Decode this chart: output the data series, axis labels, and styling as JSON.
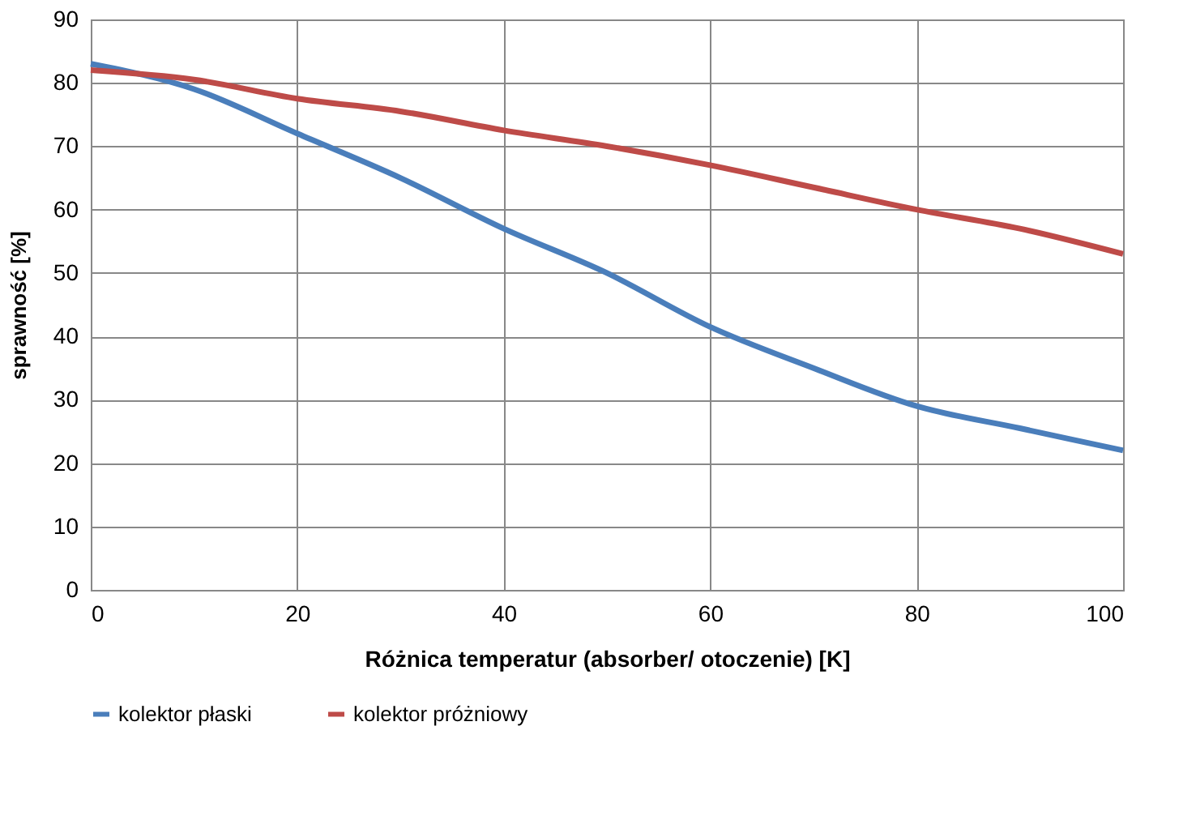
{
  "chart_data": {
    "type": "line",
    "xlabel": "Różnica temperatur (absorber/ otoczenie) [K]",
    "ylabel": "sprawność [%]",
    "x": [
      0,
      10,
      20,
      30,
      40,
      50,
      60,
      70,
      80,
      90,
      100
    ],
    "series": [
      {
        "name": "kolektor płaski",
        "color": "#4a7ebb",
        "values": [
          83,
          79,
          72,
          65,
          57,
          50,
          41.5,
          35,
          29,
          25.5,
          22
        ]
      },
      {
        "name": "kolektor próżniowy",
        "color": "#be4b48",
        "values": [
          82,
          80.5,
          77.5,
          75.5,
          72.5,
          70,
          67,
          63.5,
          60,
          57,
          53
        ]
      }
    ],
    "xlim": [
      0,
      100
    ],
    "xticks": [
      0,
      20,
      40,
      60,
      80,
      100
    ],
    "ylim": [
      0,
      90
    ],
    "yticks": [
      0,
      10,
      20,
      30,
      40,
      50,
      60,
      70,
      80,
      90
    ],
    "grid": true,
    "legend": "bottom",
    "marker": "none",
    "line_style": "solid"
  }
}
